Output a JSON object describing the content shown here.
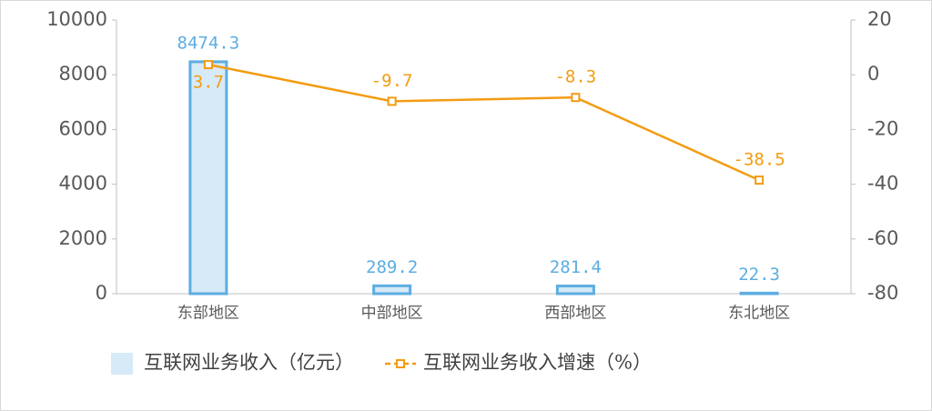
{
  "chart_data": {
    "type": "bar",
    "categories": [
      "东部地区",
      "中部地区",
      "西部地区",
      "东北地区"
    ],
    "series": [
      {
        "name": "互联网业务收入（亿元）",
        "type": "bar",
        "color": "#d6eaf8",
        "values": [
          8474.3,
          289.2,
          281.4,
          22.3
        ]
      },
      {
        "name": "互联网业务收入增速（%）",
        "type": "line",
        "axis": "y2",
        "color": "#f39c12",
        "values": [
          3.7,
          -9.7,
          -8.3,
          -38.5
        ]
      }
    ],
    "ylim": [
      0,
      10000
    ],
    "yticks": [
      0,
      2000,
      4000,
      6000,
      8000,
      10000
    ],
    "y2lim": [
      -80,
      20
    ],
    "y2ticks": [
      -80,
      -60,
      -40,
      -20,
      0,
      20
    ],
    "grid": false,
    "legend": "bottom"
  }
}
